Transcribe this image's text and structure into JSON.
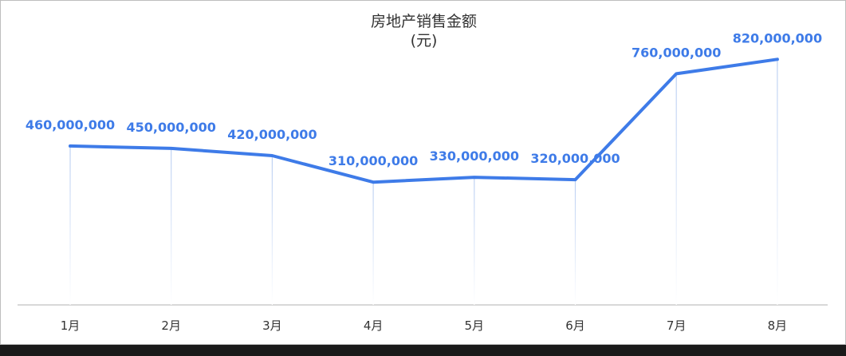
{
  "chart_data": {
    "type": "line",
    "title": "房地产销售金额",
    "subtitle": "(元)",
    "categories": [
      "1月",
      "2月",
      "3月",
      "4月",
      "5月",
      "6月",
      "7月",
      "8月"
    ],
    "series": [
      {
        "values": [
          460000000,
          450000000,
          420000000,
          310000000,
          330000000,
          320000000,
          760000000,
          820000000
        ],
        "labels": [
          "460,000,000",
          "450,000,000",
          "420,000,000",
          "310,000,000",
          "330,000,000",
          "320,000,000",
          "760,000,000",
          "820,000,000"
        ]
      }
    ],
    "ylim": [
      -200000000,
      1000000000
    ],
    "grid": false,
    "colors": {
      "line": "#3e7be8",
      "label": "#3e7be8",
      "drop": "#bcd0f2",
      "axis": "#cccccc"
    }
  }
}
